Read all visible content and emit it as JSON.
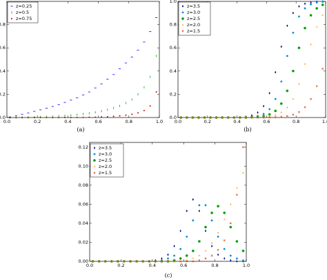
{
  "chart_data": [
    {
      "type": "scatter",
      "caption": "(a)",
      "legend": "upper left",
      "xlim": [
        0,
        1
      ],
      "ylim": [
        0,
        1
      ],
      "xticks": [
        {
          "value": 0,
          "label": "0.0"
        },
        0.2,
        0.4,
        0.6,
        0.8,
        {
          "value": 1,
          "label": "1.0"
        }
      ],
      "yticks": [
        {
          "value": 0,
          "label": "0.0"
        },
        0.2,
        0.4,
        0.6,
        0.8
      ],
      "x": [
        0.02,
        0.06,
        0.1,
        0.14,
        0.18,
        0.22,
        0.26,
        0.3,
        0.34,
        0.38,
        0.42,
        0.46,
        0.5,
        0.54,
        0.58,
        0.62,
        0.66,
        0.7,
        0.74,
        0.78,
        0.82,
        0.86,
        0.9,
        0.94,
        0.98
      ],
      "series": [
        {
          "name": "z=0.25",
          "color": "#0000ff",
          "marker": "hline",
          "values": [
            0.005,
            0.016,
            0.028,
            0.04,
            0.053,
            0.066,
            0.08,
            0.095,
            0.11,
            0.13,
            0.15,
            0.17,
            0.195,
            0.22,
            0.255,
            0.29,
            0.33,
            0.37,
            0.42,
            0.47,
            0.52,
            0.58,
            0.65,
            0.74,
            0.86
          ]
        },
        {
          "name": "z=0.5",
          "color": "#00a000",
          "marker": "vline",
          "values": [
            0,
            0,
            0.001,
            0.002,
            0.003,
            0.005,
            0.007,
            0.009,
            0.012,
            0.015,
            0.019,
            0.024,
            0.03,
            0.037,
            0.045,
            0.055,
            0.067,
            0.082,
            0.1,
            0.125,
            0.155,
            0.2,
            0.26,
            0.35,
            0.53
          ]
        },
        {
          "name": "z=0.75",
          "color": "#c00000",
          "marker": "dot",
          "values": [
            0,
            0,
            0,
            0,
            0,
            0,
            0,
            0,
            0,
            0,
            0,
            0,
            0.001,
            0.002,
            0.003,
            0.005,
            0.007,
            0.01,
            0.014,
            0.02,
            0.028,
            0.04,
            0.06,
            0.1,
            0.22
          ]
        }
      ]
    },
    {
      "type": "scatter",
      "caption": "(b)",
      "legend": "upper left",
      "xlim": [
        0,
        1
      ],
      "ylim": [
        0,
        1
      ],
      "xticks": [
        {
          "value": 0,
          "label": "0.0"
        },
        0.2,
        0.4,
        0.6,
        0.8,
        {
          "value": 1,
          "label": "1.0"
        }
      ],
      "yticks": [
        {
          "value": 0,
          "label": "0.0"
        },
        0.2,
        0.4,
        0.6,
        0.8,
        {
          "value": 1,
          "label": "1.0"
        }
      ],
      "x": [
        0.02,
        0.06,
        0.1,
        0.14,
        0.18,
        0.22,
        0.26,
        0.3,
        0.34,
        0.38,
        0.42,
        0.46,
        0.5,
        0.54,
        0.58,
        0.62,
        0.66,
        0.7,
        0.74,
        0.78,
        0.82,
        0.86,
        0.9,
        0.94,
        0.98
      ],
      "series": [
        {
          "name": "z=3.5",
          "color": "#000080",
          "marker": "diamond",
          "values": [
            0,
            0,
            0,
            0,
            0,
            0,
            0,
            0,
            0,
            0,
            0.003,
            0.007,
            0.018,
            0.043,
            0.098,
            0.21,
            0.39,
            0.61,
            0.79,
            0.9,
            0.957,
            0.98,
            0.99,
            0.997,
            0.999
          ]
        },
        {
          "name": "z=3.0",
          "color": "#0090d0",
          "marker": "circle",
          "values": [
            0,
            0,
            0,
            0,
            0,
            0,
            0,
            0,
            0,
            0,
            0.001,
            0.002,
            0.005,
            0.013,
            0.031,
            0.072,
            0.16,
            0.31,
            0.53,
            0.73,
            0.87,
            0.94,
            0.975,
            0.99,
            0.996
          ]
        },
        {
          "name": "z=2.5",
          "color": "#00a000",
          "marker": "hexagon",
          "values": [
            0,
            0,
            0,
            0,
            0,
            0,
            0,
            0,
            0,
            0,
            0,
            0,
            0.002,
            0.005,
            0.012,
            0.027,
            0.057,
            0.12,
            0.23,
            0.4,
            0.6,
            0.77,
            0.88,
            0.94,
            0.97
          ]
        },
        {
          "name": "z=2.0",
          "color": "#ff9a30",
          "marker": "plus",
          "values": [
            0,
            0,
            0,
            0,
            0,
            0,
            0,
            0,
            0,
            0,
            0,
            0,
            0,
            0.002,
            0.005,
            0.01,
            0.021,
            0.044,
            0.086,
            0.16,
            0.29,
            0.46,
            0.63,
            0.78,
            0.88
          ]
        },
        {
          "name": "z=1.5",
          "color": "#e04010",
          "marker": "x",
          "values": [
            0,
            0,
            0,
            0,
            0,
            0,
            0,
            0,
            0,
            0,
            0,
            0,
            0,
            0,
            0,
            0.001,
            0.003,
            0.007,
            0.013,
            0.025,
            0.047,
            0.089,
            0.16,
            0.27,
            0.42
          ]
        }
      ]
    },
    {
      "type": "scatter",
      "caption": "(c)",
      "legend": "upper left",
      "xlim": [
        0,
        1
      ],
      "ylim": [
        0,
        0.125
      ],
      "xticks": [
        {
          "value": 0,
          "label": "0.0"
        },
        0.2,
        0.4,
        0.6,
        0.8,
        {
          "value": 1,
          "label": "1.0"
        }
      ],
      "yticks": [
        {
          "value": 0,
          "label": "0.00"
        },
        0.02,
        0.04,
        0.06,
        0.08,
        {
          "value": 0.1,
          "label": "0.10"
        },
        0.12
      ],
      "x": [
        0.02,
        0.06,
        0.1,
        0.14,
        0.18,
        0.22,
        0.26,
        0.3,
        0.34,
        0.38,
        0.42,
        0.46,
        0.5,
        0.54,
        0.58,
        0.62,
        0.66,
        0.7,
        0.74,
        0.78,
        0.82,
        0.86,
        0.9,
        0.94,
        0.98
      ],
      "series": [
        {
          "name": "z=3.5",
          "color": "#000080",
          "marker": "diamond",
          "values": [
            0,
            0,
            0,
            0,
            0,
            0,
            0,
            0,
            0,
            0,
            0.001,
            0.003,
            0.007,
            0.016,
            0.032,
            0.053,
            0.065,
            0.053,
            0.032,
            0.016,
            0.007,
            0.003,
            0.001,
            0,
            0
          ]
        },
        {
          "name": "z=3.0",
          "color": "#0090d0",
          "marker": "circle",
          "values": [
            0,
            0,
            0,
            0,
            0,
            0,
            0,
            0,
            0,
            0,
            0,
            0.001,
            0.003,
            0.006,
            0.013,
            0.026,
            0.043,
            0.059,
            0.059,
            0.043,
            0.026,
            0.013,
            0.006,
            0.003,
            0.001
          ]
        },
        {
          "name": "z=2.5",
          "color": "#00a000",
          "marker": "hexagon",
          "values": [
            0,
            0,
            0,
            0,
            0,
            0,
            0,
            0,
            0,
            0,
            0,
            0,
            0,
            0.001,
            0.003,
            0.006,
            0.011,
            0.021,
            0.036,
            0.051,
            0.058,
            0.051,
            0.036,
            0.021,
            0.011
          ]
        },
        {
          "name": "z=2.0",
          "color": "#ff9a30",
          "marker": "plus",
          "values": [
            0,
            0,
            0,
            0,
            0,
            0,
            0,
            0,
            0,
            0,
            0,
            0,
            0,
            0,
            0,
            0.001,
            0.003,
            0.006,
            0.011,
            0.019,
            0.03,
            0.044,
            0.06,
            0.077,
            0.093
          ]
        },
        {
          "name": "z=1.5",
          "color": "#e04010",
          "marker": "x",
          "values": [
            0,
            0,
            0,
            0,
            0,
            0,
            0,
            0,
            0,
            0,
            0,
            0,
            0,
            0,
            0,
            0,
            0,
            0.001,
            0.003,
            0.006,
            0.012,
            0.022,
            0.04,
            0.07,
            0.12
          ]
        }
      ]
    }
  ]
}
